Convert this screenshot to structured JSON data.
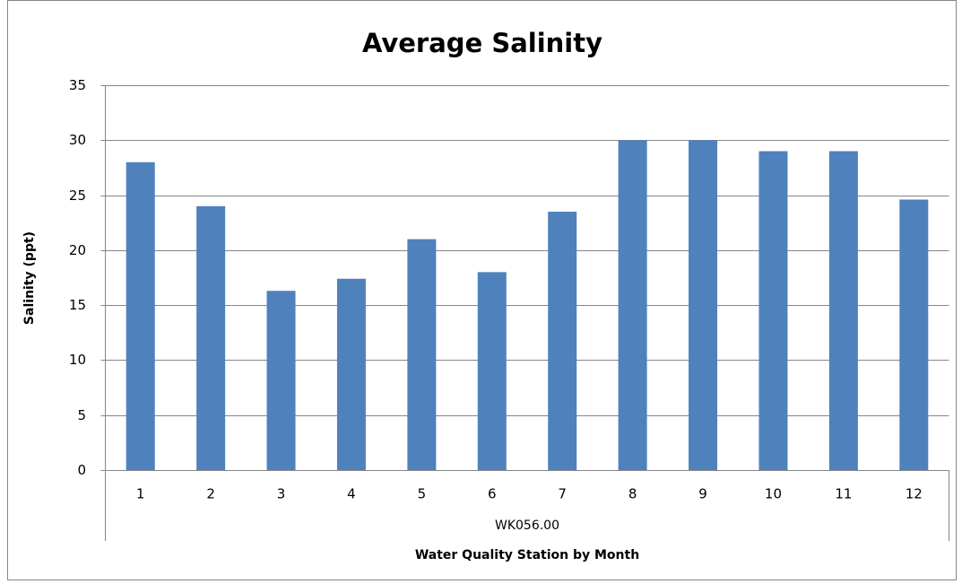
{
  "chart_data": {
    "type": "bar",
    "title": "Average Salinity",
    "y_label": "Salinity (ppt)",
    "x_label": "Water Quality Station by Month",
    "group_label": "WK056.00",
    "categories": [
      "1",
      "2",
      "3",
      "4",
      "5",
      "6",
      "7",
      "8",
      "9",
      "10",
      "11",
      "12"
    ],
    "values": [
      28,
      24,
      16.3,
      17.4,
      21,
      18,
      23.5,
      30,
      30,
      29,
      29,
      24.6
    ],
    "color": "#4f81bd",
    "ylim": [
      0,
      35
    ],
    "yticks": [
      0,
      5,
      10,
      15,
      20,
      25,
      30,
      35
    ],
    "grid": true
  }
}
